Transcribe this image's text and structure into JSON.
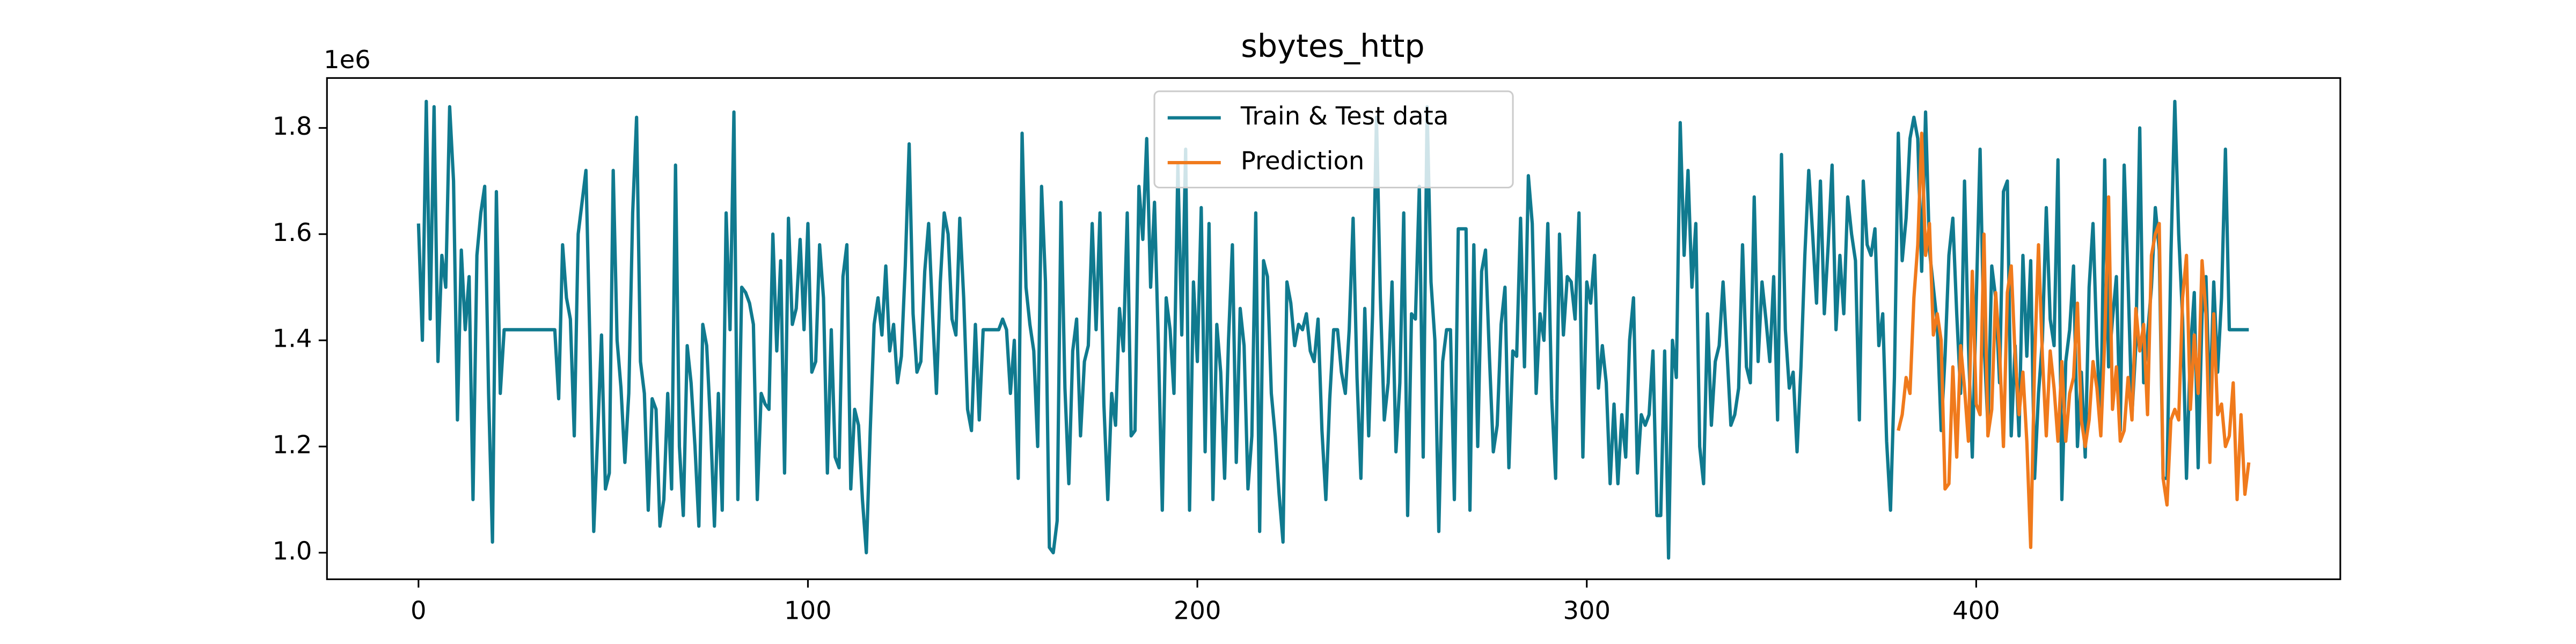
{
  "chart_data": {
    "type": "line",
    "title": "sbytes_http",
    "y_offset_label": "1e6",
    "xlim": [
      -23.5,
      493.5
    ],
    "ylim": [
      0.95,
      1.894
    ],
    "xticks": [
      0,
      100,
      200,
      300,
      400
    ],
    "yticks": [
      {
        "value": 1,
        "label": "1.0"
      },
      1.2,
      1.4,
      1.6,
      1.8
    ],
    "legend": "upper center",
    "grid": false,
    "series": [
      {
        "name": "Train & Test data",
        "color": "#107a8f",
        "x": [
          0,
          1,
          2,
          3,
          4,
          5,
          6,
          7,
          8,
          9,
          10,
          11,
          12,
          13,
          14,
          15,
          16,
          17,
          18,
          19,
          20,
          21,
          22,
          23,
          24,
          25,
          26,
          27,
          28,
          29,
          30,
          31,
          32,
          33,
          34,
          35,
          36,
          37,
          38,
          39,
          40,
          41,
          42,
          43,
          44,
          45,
          46,
          47,
          48,
          49,
          50,
          51,
          52,
          53,
          54,
          55,
          56,
          57,
          58,
          59,
          60,
          61,
          62,
          63,
          64,
          65,
          66,
          67,
          68,
          69,
          70,
          71,
          72,
          73,
          74,
          75,
          76,
          77,
          78,
          79,
          80,
          81,
          82,
          83,
          84,
          85,
          86,
          87,
          88,
          89,
          90,
          91,
          92,
          93,
          94,
          95,
          96,
          97,
          98,
          99,
          100,
          101,
          102,
          103,
          104,
          105,
          106,
          107,
          108,
          109,
          110,
          111,
          112,
          113,
          114,
          115,
          116,
          117,
          118,
          119,
          120,
          121,
          122,
          123,
          124,
          125,
          126,
          127,
          128,
          129,
          130,
          131,
          132,
          133,
          134,
          135,
          136,
          137,
          138,
          139,
          140,
          141,
          142,
          143,
          144,
          145,
          146,
          147,
          148,
          149,
          150,
          151,
          152,
          153,
          154,
          155,
          156,
          157,
          158,
          159,
          160,
          161,
          162,
          163,
          164,
          165,
          166,
          167,
          168,
          169,
          170,
          171,
          172,
          173,
          174,
          175,
          176,
          177,
          178,
          179,
          180,
          181,
          182,
          183,
          184,
          185,
          186,
          187,
          188,
          189,
          190,
          191,
          192,
          193,
          194,
          195,
          196,
          197,
          198,
          199,
          200,
          201,
          202,
          203,
          204,
          205,
          206,
          207,
          208,
          209,
          210,
          211,
          212,
          213,
          214,
          215,
          216,
          217,
          218,
          219,
          220,
          221,
          222,
          223,
          224,
          225,
          226,
          227,
          228,
          229,
          230,
          231,
          232,
          233,
          234,
          235,
          236,
          237,
          238,
          239,
          240,
          241,
          242,
          243,
          244,
          245,
          246,
          247,
          248,
          249,
          250,
          251,
          252,
          253,
          254,
          255,
          256,
          257,
          258,
          259,
          260,
          261,
          262,
          263,
          264,
          265,
          266,
          267,
          268,
          269,
          270,
          271,
          272,
          273,
          274,
          275,
          276,
          277,
          278,
          279,
          280,
          281,
          282,
          283,
          284,
          285,
          286,
          287,
          288,
          289,
          290,
          291,
          292,
          293,
          294,
          295,
          296,
          297,
          298,
          299,
          300,
          301,
          302,
          303,
          304,
          305,
          306,
          307,
          308,
          309,
          310,
          311,
          312,
          313,
          314,
          315,
          316,
          317,
          318,
          319,
          320,
          321,
          322,
          323,
          324,
          325,
          326,
          327,
          328,
          329,
          330,
          331,
          332,
          333,
          334,
          335,
          336,
          337,
          338,
          339,
          340,
          341,
          342,
          343,
          344,
          345,
          346,
          347,
          348,
          349,
          350,
          351,
          352,
          353,
          354,
          355,
          356,
          357,
          358,
          359,
          360,
          361,
          362,
          363,
          364,
          365,
          366,
          367,
          368,
          369,
          370,
          371,
          372,
          373,
          374,
          375,
          376,
          377,
          378,
          379,
          380,
          381,
          382,
          383,
          384,
          385,
          386,
          387,
          388,
          389,
          390,
          391,
          392,
          393,
          394,
          395,
          396,
          397,
          398,
          399,
          400,
          401,
          402,
          403,
          404,
          405,
          406,
          407,
          408,
          409,
          410,
          411,
          412,
          413,
          414,
          415,
          416,
          417,
          418,
          419,
          420,
          421,
          422,
          423,
          424,
          425,
          426,
          427,
          428,
          429,
          430,
          431,
          432,
          433,
          434,
          435,
          436,
          437,
          438,
          439,
          440,
          441,
          442,
          443,
          444,
          445,
          446,
          447,
          448,
          449,
          450,
          451,
          452,
          453,
          454,
          455,
          456,
          457,
          458,
          459,
          460,
          461,
          462,
          463,
          464,
          465,
          466,
          467,
          468,
          469,
          470
        ],
        "values": [
          1.62,
          1.4,
          1.85,
          1.44,
          1.84,
          1.36,
          1.56,
          1.5,
          1.84,
          1.7,
          1.25,
          1.57,
          1.42,
          1.52,
          1.1,
          1.56,
          1.64,
          1.69,
          1.3,
          1.02,
          1.68,
          1.3,
          1.42,
          1.42,
          1.42,
          1.42,
          1.42,
          1.42,
          1.42,
          1.42,
          1.42,
          1.42,
          1.42,
          1.42,
          1.42,
          1.42,
          1.29,
          1.58,
          1.48,
          1.44,
          1.22,
          1.6,
          1.66,
          1.72,
          1.4,
          1.04,
          1.22,
          1.41,
          1.12,
          1.15,
          1.72,
          1.4,
          1.31,
          1.17,
          1.3,
          1.64,
          1.82,
          1.36,
          1.3,
          1.08,
          1.29,
          1.27,
          1.05,
          1.1,
          1.3,
          1.12,
          1.73,
          1.2,
          1.07,
          1.39,
          1.32,
          1.2,
          1.05,
          1.43,
          1.39,
          1.24,
          1.05,
          1.3,
          1.08,
          1.64,
          1.42,
          1.83,
          1.1,
          1.5,
          1.49,
          1.47,
          1.43,
          1.1,
          1.3,
          1.28,
          1.27,
          1.6,
          1.38,
          1.55,
          1.15,
          1.63,
          1.43,
          1.46,
          1.59,
          1.42,
          1.62,
          1.34,
          1.36,
          1.58,
          1.48,
          1.15,
          1.42,
          1.18,
          1.16,
          1.52,
          1.58,
          1.12,
          1.27,
          1.24,
          1.1,
          1.0,
          1.23,
          1.43,
          1.48,
          1.41,
          1.54,
          1.38,
          1.43,
          1.32,
          1.37,
          1.54,
          1.77,
          1.45,
          1.34,
          1.36,
          1.53,
          1.62,
          1.45,
          1.3,
          1.51,
          1.64,
          1.6,
          1.44,
          1.41,
          1.63,
          1.48,
          1.27,
          1.23,
          1.43,
          1.25,
          1.42,
          1.42,
          1.42,
          1.42,
          1.42,
          1.44,
          1.42,
          1.3,
          1.4,
          1.14,
          1.79,
          1.5,
          1.43,
          1.38,
          1.2,
          1.69,
          1.51,
          1.01,
          1.0,
          1.06,
          1.66,
          1.31,
          1.13,
          1.38,
          1.44,
          1.22,
          1.36,
          1.39,
          1.62,
          1.42,
          1.64,
          1.28,
          1.1,
          1.3,
          1.24,
          1.46,
          1.38,
          1.64,
          1.22,
          1.23,
          1.69,
          1.59,
          1.78,
          1.5,
          1.66,
          1.39,
          1.08,
          1.48,
          1.42,
          1.3,
          1.73,
          1.41,
          1.76,
          1.08,
          1.51,
          1.36,
          1.65,
          1.19,
          1.62,
          1.1,
          1.43,
          1.34,
          1.14,
          1.4,
          1.58,
          1.17,
          1.46,
          1.39,
          1.12,
          1.22,
          1.64,
          1.04,
          1.55,
          1.52,
          1.3,
          1.22,
          1.11,
          1.02,
          1.51,
          1.47,
          1.39,
          1.43,
          1.42,
          1.45,
          1.38,
          1.36,
          1.44,
          1.23,
          1.1,
          1.29,
          1.42,
          1.42,
          1.34,
          1.3,
          1.42,
          1.63,
          1.33,
          1.14,
          1.46,
          1.22,
          1.45,
          1.82,
          1.48,
          1.25,
          1.32,
          1.51,
          1.19,
          1.32,
          1.64,
          1.07,
          1.45,
          1.44,
          1.69,
          1.18,
          1.84,
          1.51,
          1.4,
          1.04,
          1.36,
          1.42,
          1.42,
          1.1,
          1.61,
          1.61,
          1.61,
          1.08,
          1.58,
          1.2,
          1.53,
          1.57,
          1.37,
          1.19,
          1.24,
          1.43,
          1.5,
          1.16,
          1.38,
          1.37,
          1.63,
          1.35,
          1.71,
          1.62,
          1.3,
          1.45,
          1.4,
          1.62,
          1.29,
          1.14,
          1.6,
          1.41,
          1.52,
          1.51,
          1.44,
          1.64,
          1.18,
          1.51,
          1.47,
          1.56,
          1.31,
          1.39,
          1.32,
          1.13,
          1.28,
          1.13,
          1.26,
          1.18,
          1.4,
          1.48,
          1.15,
          1.26,
          1.24,
          1.26,
          1.38,
          1.07,
          1.07,
          1.38,
          0.99,
          1.4,
          1.33,
          1.81,
          1.56,
          1.72,
          1.5,
          1.62,
          1.2,
          1.13,
          1.45,
          1.24,
          1.36,
          1.39,
          1.51,
          1.38,
          1.24,
          1.26,
          1.31,
          1.58,
          1.35,
          1.32,
          1.67,
          1.36,
          1.51,
          1.44,
          1.36,
          1.52,
          1.25,
          1.75,
          1.42,
          1.31,
          1.34,
          1.19,
          1.35,
          1.56,
          1.72,
          1.6,
          1.47,
          1.7,
          1.45,
          1.58,
          1.73,
          1.42,
          1.56,
          1.45,
          1.67,
          1.6,
          1.55,
          1.25,
          1.7,
          1.58,
          1.56,
          1.61,
          1.39,
          1.45,
          1.21,
          1.08,
          1.33,
          1.79,
          1.55,
          1.63,
          1.78,
          1.82,
          1.78,
          1.53,
          1.83,
          1.57,
          1.5,
          1.43,
          1.23,
          1.37,
          1.56,
          1.63,
          1.45,
          1.3,
          1.7,
          1.39,
          1.18,
          1.47,
          1.76,
          1.4,
          1.24,
          1.54,
          1.48,
          1.32,
          1.68,
          1.7,
          1.22,
          1.39,
          1.22,
          1.56,
          1.37,
          1.55,
          1.14,
          1.3,
          1.4,
          1.65,
          1.44,
          1.39,
          1.74,
          1.1,
          1.36,
          1.42,
          1.54,
          1.2,
          1.34,
          1.18,
          1.5,
          1.62,
          1.39,
          1.24,
          1.74,
          1.35,
          1.44,
          1.52,
          1.23,
          1.73,
          1.51,
          1.26,
          1.39,
          1.8,
          1.32,
          1.41,
          1.5,
          1.65,
          1.57,
          1.14,
          1.14,
          1.56,
          1.85,
          1.6,
          1.44,
          1.14,
          1.38,
          1.49,
          1.16,
          1.45,
          1.52,
          1.27,
          1.51,
          1.34,
          1.48,
          1.76,
          1.42,
          1.42,
          1.42,
          1.42,
          1.42,
          1.42
        ]
      },
      {
        "name": "Prediction",
        "color": "#f07a1c",
        "x": [
          380,
          381,
          382,
          383,
          384,
          385,
          386,
          387,
          388,
          389,
          390,
          391,
          392,
          393,
          394,
          395,
          396,
          397,
          398,
          399,
          400,
          401,
          402,
          403,
          404,
          405,
          406,
          407,
          408,
          409,
          410,
          411,
          412,
          413,
          414,
          415,
          416,
          417,
          418,
          419,
          420,
          421,
          422,
          423,
          424,
          425,
          426,
          427,
          428,
          429,
          430,
          431,
          432,
          433,
          434,
          435,
          436,
          437,
          438,
          439,
          440,
          441,
          442,
          443,
          444,
          445,
          446,
          447,
          448,
          449,
          450,
          451,
          452,
          453,
          454,
          455,
          456,
          457,
          458,
          459,
          460,
          461,
          462,
          463,
          464,
          465,
          466,
          467,
          468,
          469,
          470
        ],
        "values": [
          1.23,
          1.26,
          1.33,
          1.3,
          1.48,
          1.58,
          1.79,
          1.56,
          1.62,
          1.41,
          1.45,
          1.4,
          1.12,
          1.13,
          1.35,
          1.18,
          1.39,
          1.31,
          1.21,
          1.53,
          1.28,
          1.26,
          1.6,
          1.22,
          1.27,
          1.49,
          1.38,
          1.2,
          1.49,
          1.54,
          1.37,
          1.26,
          1.34,
          1.21,
          1.01,
          1.36,
          1.58,
          1.37,
          1.22,
          1.38,
          1.31,
          1.21,
          1.36,
          1.21,
          1.3,
          1.33,
          1.47,
          1.25,
          1.2,
          1.25,
          1.36,
          1.31,
          1.22,
          1.4,
          1.67,
          1.27,
          1.35,
          1.21,
          1.23,
          1.33,
          1.25,
          1.46,
          1.38,
          1.43,
          1.26,
          1.56,
          1.6,
          1.62,
          1.14,
          1.09,
          1.25,
          1.27,
          1.25,
          1.48,
          1.56,
          1.27,
          1.41,
          1.3,
          1.55,
          1.45,
          1.17,
          1.45,
          1.26,
          1.28,
          1.2,
          1.22,
          1.32,
          1.1,
          1.26,
          1.11,
          1.17
        ]
      }
    ]
  }
}
